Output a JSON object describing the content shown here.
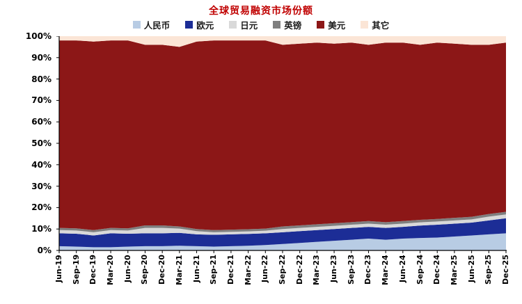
{
  "title": "全球贸易融资市场份额",
  "accent_color": "#c00000",
  "chart_data": {
    "type": "area",
    "stacked_percent": true,
    "title": "全球贸易融资市场份额",
    "legend_position": "top",
    "grid": false,
    "ylim": [
      0,
      100
    ],
    "y_ticks": [
      "0%",
      "10%",
      "20%",
      "30%",
      "40%",
      "50%",
      "60%",
      "70%",
      "80%",
      "90%",
      "100%"
    ],
    "x": [
      "Jun-19",
      "Sep-19",
      "Dec-19",
      "Mar-20",
      "Jun-20",
      "Sep-20",
      "Dec-20",
      "Mar-21",
      "Jun-21",
      "Sep-21",
      "Dec-21",
      "Mar-22",
      "Jun-22",
      "Sep-22",
      "Dec-22",
      "Mar-23",
      "Jun-23",
      "Sep-23",
      "Dec-23",
      "Mar-24",
      "Jun-24",
      "Sep-24",
      "Dec-24",
      "Mar-25",
      "Jun-25",
      "Sep-25",
      "Dec-25"
    ],
    "series": [
      {
        "key": "rmb",
        "label": "人民币",
        "color": "#b8cce4",
        "values": [
          2,
          1.8,
          1.5,
          1.5,
          1.8,
          2,
          2,
          2.2,
          2,
          1.8,
          2,
          2.2,
          2.5,
          3,
          3.5,
          4,
          4.5,
          5,
          5.5,
          5,
          5.5,
          5.8,
          6,
          6.5,
          7,
          7.5,
          8
        ]
      },
      {
        "key": "euro",
        "label": "欧元",
        "color": "#1c2d96",
        "values": [
          6,
          6,
          5.5,
          6.5,
          6,
          6,
          6,
          6,
          5.5,
          5.5,
          5.5,
          5.5,
          5.5,
          5.5,
          5.5,
          5.5,
          5.5,
          5.5,
          5.5,
          5.5,
          5.5,
          5.8,
          6,
          6,
          6,
          6.5,
          7
        ]
      },
      {
        "key": "jpy",
        "label": "日元",
        "color": "#d9d9d9",
        "values": [
          1.5,
          1.5,
          1.5,
          1.5,
          1.5,
          2.5,
          2.5,
          2,
          1.5,
          1.2,
          1.2,
          1.2,
          1.2,
          1.5,
          1.5,
          1.5,
          1.5,
          1.5,
          1.5,
          1.5,
          1.5,
          1.5,
          1.5,
          1.5,
          1.5,
          1.8,
          1.8
        ]
      },
      {
        "key": "gbp",
        "label": "英镑",
        "color": "#7f7f7f",
        "values": [
          1,
          1,
          1,
          1,
          1,
          1.2,
          1.2,
          1,
          1,
          1,
          1,
          1,
          1,
          1.2,
          1.2,
          1.2,
          1.2,
          1.2,
          1.2,
          1.2,
          1.2,
          1.2,
          1.2,
          1.2,
          1.2,
          1.2,
          1.2
        ]
      },
      {
        "key": "usd",
        "label": "美元",
        "color": "#8c1717",
        "values": [
          87.5,
          87.7,
          88,
          87.5,
          87.7,
          84.3,
          84.3,
          83.8,
          87.5,
          88.5,
          88.3,
          88.1,
          87.8,
          84.8,
          84.8,
          84.8,
          83.8,
          83.8,
          82.3,
          83.8,
          83.3,
          81.7,
          82.3,
          81.3,
          80.3,
          79,
          79
        ]
      },
      {
        "key": "other",
        "label": "其它",
        "color": "#fbe5d6",
        "values": [
          2,
          2,
          2.5,
          2,
          2,
          4,
          4,
          5,
          2.5,
          2,
          2,
          2,
          2,
          4,
          3.5,
          3,
          3.5,
          3,
          4,
          3,
          3,
          4,
          3,
          3.5,
          4,
          4,
          3
        ]
      }
    ]
  }
}
